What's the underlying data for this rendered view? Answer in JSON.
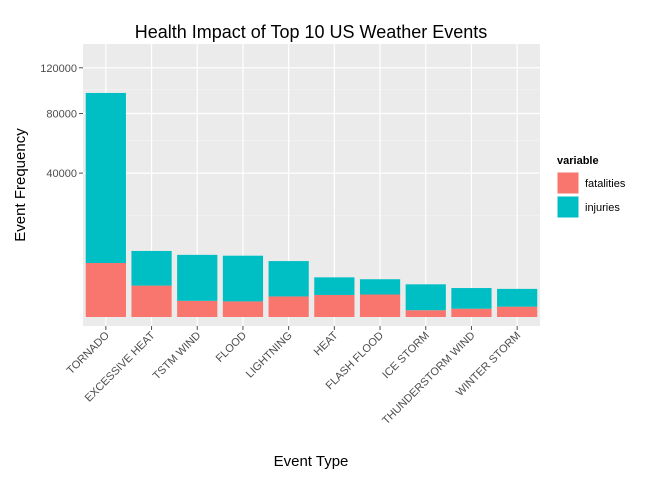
{
  "chart_data": {
    "type": "bar",
    "stacked": true,
    "y_scale": "sqrt",
    "title": "Health Impact of Top 10 US Weather Events",
    "xlabel": "Event Type",
    "ylabel": "Event Frequency",
    "categories": [
      "TORNADO",
      "EXCESSIVE HEAT",
      "TSTM WIND",
      "FLOOD",
      "LIGHTNING",
      "HEAT",
      "FLASH FLOOD",
      "ICE STORM",
      "THUNDERSTORM WIND",
      "WINTER STORM"
    ],
    "series": [
      {
        "name": "fatalities",
        "color": "#F8766D",
        "values": [
          5633,
          1903,
          504,
          470,
          816,
          937,
          978,
          89,
          133,
          206
        ]
      },
      {
        "name": "injuries",
        "color": "#00BFC4",
        "values": [
          91346,
          6525,
          6957,
          6789,
          5230,
          2100,
          1777,
          1975,
          1488,
          1321
        ]
      }
    ],
    "yticks": [
      40000,
      80000,
      120000
    ],
    "ylim": [
      0,
      144000
    ],
    "legend": {
      "title": "variable",
      "position": "right"
    },
    "grid": true,
    "panel_background": "#EBEBEB"
  }
}
